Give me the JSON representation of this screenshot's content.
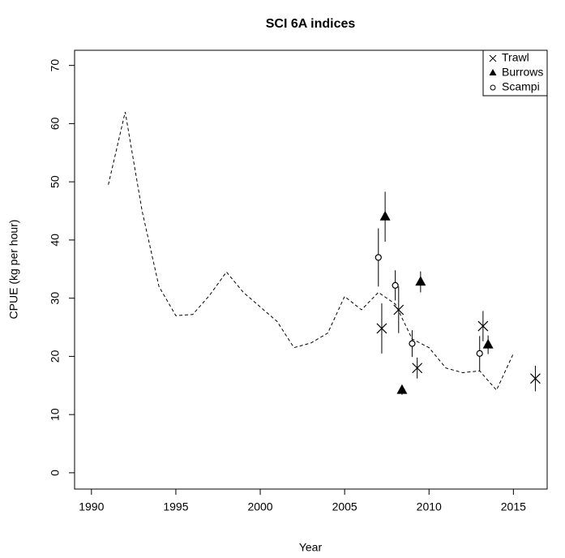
{
  "chart_data": {
    "type": "line",
    "title": "SCI 6A indices",
    "xlabel": "Year",
    "ylabel": "CPUE (kg per hour)",
    "xlim": [
      1989,
      2017
    ],
    "ylim": [
      -2.8,
      72.6
    ],
    "xticks": [
      1990,
      1995,
      2000,
      2005,
      2010,
      2015
    ],
    "yticks": [
      0,
      10,
      20,
      30,
      40,
      50,
      60,
      70
    ],
    "legend": "topright",
    "series": [
      {
        "style": "dashed",
        "color": "#000000",
        "x": [
          1991,
          1992,
          1993,
          1994,
          1995,
          1996,
          1997,
          1998,
          1999,
          2000,
          2001,
          2002,
          2003,
          2004,
          2005,
          2006,
          2007,
          2008,
          2009,
          2010,
          2011,
          2012,
          2013,
          2014,
          2015
        ],
        "values": [
          49.5,
          62,
          45,
          32,
          27,
          27.2,
          30.5,
          34.5,
          31,
          28.5,
          26,
          21.5,
          22.3,
          24,
          30.3,
          28,
          31,
          29,
          23,
          21.5,
          18,
          17.2,
          17.5,
          14.2,
          20.5
        ]
      },
      {
        "name": "Trawl",
        "marker": "x",
        "color": "#000000",
        "x": [
          2007.2,
          2008.2,
          2009.3,
          2013.2,
          2016.3
        ],
        "values": [
          24.8,
          28,
          18,
          25.2,
          16.2
        ],
        "errors": [
          4.3,
          4,
          1.8,
          2.6,
          2.2
        ]
      },
      {
        "name": "Burrows",
        "marker": "triangle",
        "color": "#000000",
        "x": [
          2007.4,
          2008.4,
          2009.5,
          2013.5
        ],
        "values": [
          44,
          14.2,
          32.8,
          22
        ],
        "errors": [
          4.3,
          0.8,
          1.8,
          1.6
        ]
      },
      {
        "name": "Scampi",
        "marker": "circle",
        "color": "#000000",
        "x": [
          2007.0,
          2008.0,
          2009.0,
          2013.0
        ],
        "values": [
          37,
          32.2,
          22.2,
          20.5
        ],
        "errors": [
          5,
          2.6,
          2.3,
          3
        ]
      }
    ]
  }
}
